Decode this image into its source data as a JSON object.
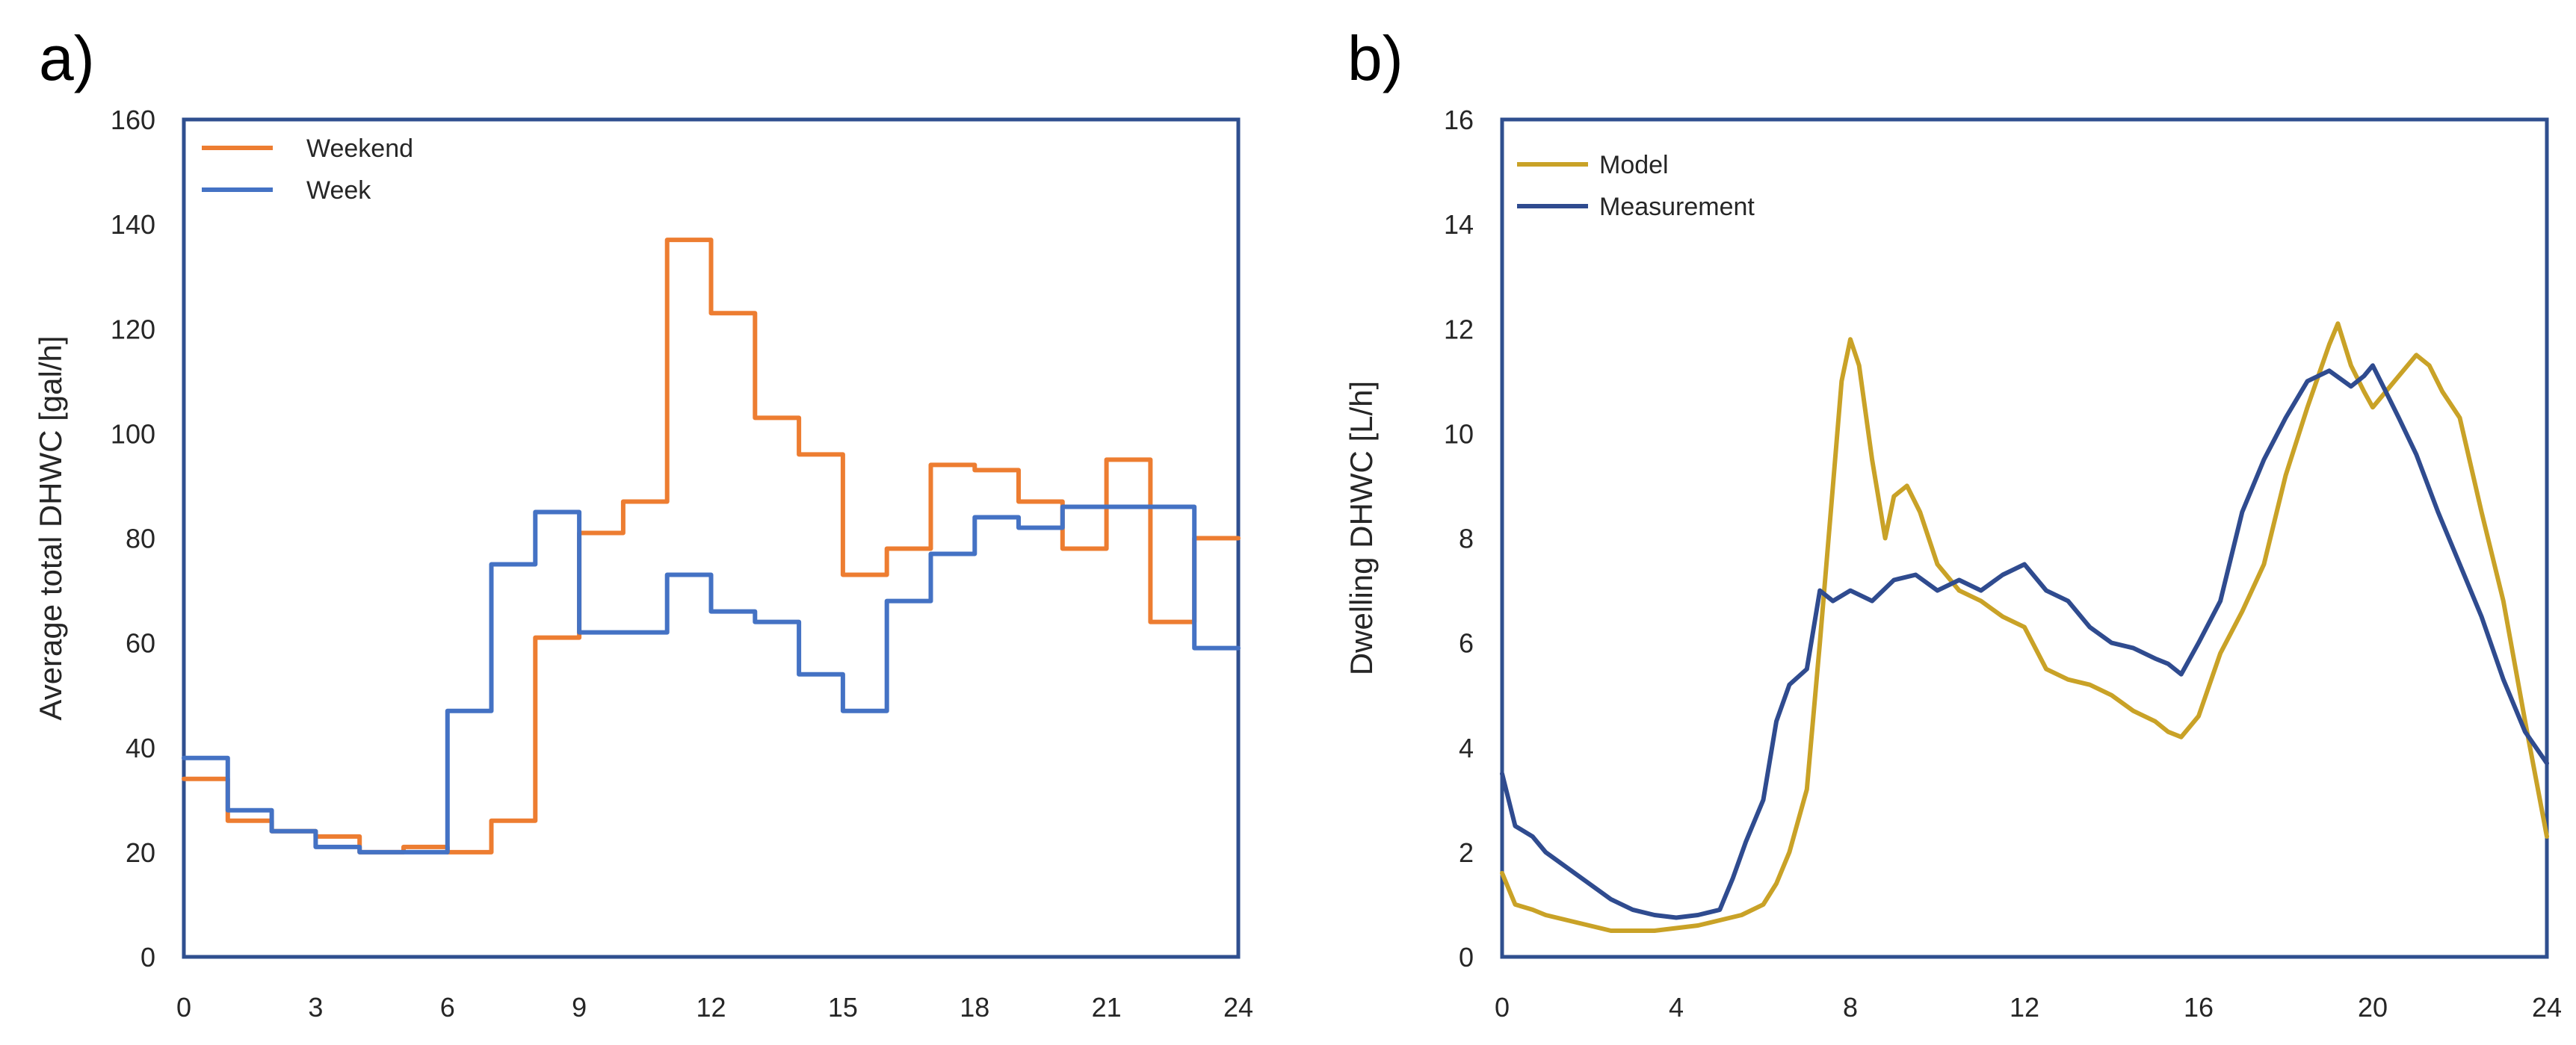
{
  "chart_data": [
    {
      "panel_label": "a)",
      "type": "line",
      "step": true,
      "title": "",
      "xlabel": "",
      "ylabel": "Average total DHWC [gal/h]",
      "xlim": [
        0,
        24
      ],
      "ylim": [
        0,
        160
      ],
      "xticks": [
        0,
        3,
        6,
        9,
        12,
        15,
        18,
        21,
        24
      ],
      "yticks": [
        0,
        20,
        40,
        60,
        80,
        100,
        120,
        140,
        160
      ],
      "grid": false,
      "legend_position": "top-left",
      "x": [
        0,
        1,
        2,
        3,
        4,
        5,
        6,
        7,
        8,
        9,
        10,
        11,
        12,
        13,
        14,
        15,
        16,
        17,
        18,
        19,
        20,
        21,
        22,
        23
      ],
      "series": [
        {
          "name": "Weekend",
          "color": "#ED7D31",
          "values": [
            34,
            26,
            24,
            23,
            20,
            21,
            20,
            26,
            61,
            81,
            87,
            137,
            123,
            103,
            96,
            73,
            78,
            94,
            93,
            87,
            78,
            95,
            64,
            80
          ]
        },
        {
          "name": "Week",
          "color": "#4472C4",
          "values": [
            38,
            28,
            24,
            21,
            20,
            20,
            47,
            75,
            85,
            62,
            62,
            73,
            66,
            64,
            54,
            47,
            68,
            77,
            84,
            82,
            86,
            86,
            86,
            59
          ]
        }
      ]
    },
    {
      "panel_label": "b)",
      "type": "line",
      "title": "",
      "xlabel": "",
      "ylabel": "Dwelling DHWC [L/h]",
      "xlim": [
        0,
        24
      ],
      "ylim": [
        0,
        16
      ],
      "xticks": [
        0,
        4,
        8,
        12,
        16,
        20,
        24
      ],
      "yticks": [
        0,
        2,
        4,
        6,
        8,
        10,
        12,
        14,
        16
      ],
      "grid": false,
      "legend_position": "top-left",
      "series": [
        {
          "name": "Model",
          "color": "#C9A227",
          "x": [
            0,
            0.3,
            0.7,
            1,
            1.5,
            2,
            2.5,
            3,
            3.5,
            4,
            4.5,
            5,
            5.5,
            6,
            6.3,
            6.6,
            7,
            7.3,
            7.6,
            7.8,
            8,
            8.2,
            8.5,
            8.8,
            9,
            9.3,
            9.6,
            10,
            10.5,
            11,
            11.5,
            12,
            12.5,
            13,
            13.5,
            14,
            14.5,
            15,
            15.3,
            15.6,
            16,
            16.5,
            17,
            17.5,
            18,
            18.5,
            19,
            19.2,
            19.5,
            19.8,
            20,
            20.5,
            21,
            21.3,
            21.6,
            22,
            22.5,
            23,
            23.5,
            24
          ],
          "y": [
            1.6,
            1.0,
            0.9,
            0.8,
            0.7,
            0.6,
            0.5,
            0.5,
            0.5,
            0.55,
            0.6,
            0.7,
            0.8,
            1.0,
            1.4,
            2.0,
            3.2,
            6.0,
            9.0,
            11.0,
            11.8,
            11.3,
            9.5,
            8.0,
            8.8,
            9.0,
            8.5,
            7.5,
            7.0,
            6.8,
            6.5,
            6.3,
            5.5,
            5.3,
            5.2,
            5.0,
            4.7,
            4.5,
            4.3,
            4.2,
            4.6,
            5.8,
            6.6,
            7.5,
            9.2,
            10.5,
            11.7,
            12.1,
            11.3,
            10.8,
            10.5,
            11.0,
            11.5,
            11.3,
            10.8,
            10.3,
            8.5,
            6.8,
            4.5,
            2.3
          ]
        },
        {
          "name": "Measurement",
          "color": "#2F4B8F",
          "x": [
            0,
            0.3,
            0.7,
            1,
            1.5,
            2,
            2.5,
            3,
            3.5,
            4,
            4.5,
            5,
            5.3,
            5.6,
            6,
            6.3,
            6.6,
            7,
            7.3,
            7.6,
            8,
            8.5,
            9,
            9.5,
            10,
            10.5,
            11,
            11.5,
            12,
            12.5,
            13,
            13.5,
            14,
            14.5,
            15,
            15.3,
            15.6,
            16,
            16.5,
            17,
            17.5,
            18,
            18.5,
            19,
            19.5,
            19.8,
            20,
            20.3,
            20.6,
            21,
            21.5,
            22,
            22.5,
            23,
            23.5,
            24
          ],
          "y": [
            3.5,
            2.5,
            2.3,
            2.0,
            1.7,
            1.4,
            1.1,
            0.9,
            0.8,
            0.75,
            0.8,
            0.9,
            1.5,
            2.2,
            3.0,
            4.5,
            5.2,
            5.5,
            7.0,
            6.8,
            7.0,
            6.8,
            7.2,
            7.3,
            7.0,
            7.2,
            7.0,
            7.3,
            7.5,
            7.0,
            6.8,
            6.3,
            6.0,
            5.9,
            5.7,
            5.6,
            5.4,
            6.0,
            6.8,
            8.5,
            9.5,
            10.3,
            11.0,
            11.2,
            10.9,
            11.1,
            11.3,
            10.8,
            10.3,
            9.6,
            8.5,
            7.5,
            6.5,
            5.3,
            4.3,
            3.7
          ]
        }
      ]
    }
  ]
}
